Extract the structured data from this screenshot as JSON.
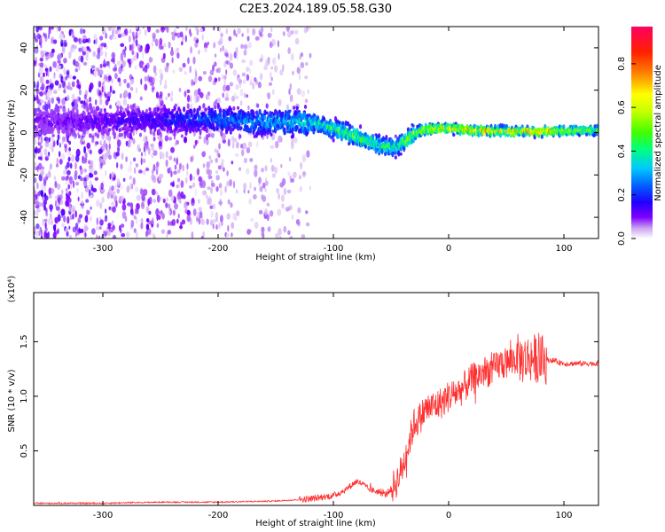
{
  "page_title": "C2E3.2024.189.05.58.G30",
  "chart_data": [
    {
      "type": "heatmap",
      "xlabel": "Height of straight line (km)",
      "ylabel": "Frequency (Hz)",
      "xlim": [
        -360,
        130
      ],
      "ylim": [
        -50,
        50
      ],
      "xticks": [
        -300,
        -200,
        -100,
        0,
        100
      ],
      "yticks": [
        -40,
        -20,
        0,
        20,
        40
      ],
      "colorbar": {
        "label": "Normalized spectral amplitude",
        "range": [
          0,
          0.97
        ],
        "ticks": [
          "0.0",
          "0.2",
          "0.4",
          "0.6",
          "0.8"
        ],
        "tick_values": [
          0.0,
          0.2,
          0.4,
          0.6,
          0.8
        ],
        "colors": [
          "#ffffff",
          "#c8a0f0",
          "#8000ff",
          "#2000ff",
          "#0060ff",
          "#00c8ff",
          "#00ff80",
          "#40ff00",
          "#c8ff00",
          "#ffff00",
          "#ff8000",
          "#ff2000",
          "#ff0060"
        ]
      },
      "ridge": {
        "x": [
          -360,
          -300,
          -250,
          -200,
          -150,
          -120,
          -100,
          -80,
          -60,
          -45,
          -35,
          -25,
          -10,
          0,
          20,
          50,
          80,
          110,
          130
        ],
        "f": [
          5,
          5,
          6,
          6,
          5,
          5,
          2,
          -2,
          -6,
          -7,
          -3,
          1,
          2,
          2,
          1,
          0.5,
          0.5,
          1,
          1
        ],
        "amplitude": [
          0.12,
          0.15,
          0.2,
          0.28,
          0.35,
          0.42,
          0.5,
          0.55,
          0.5,
          0.45,
          0.6,
          0.7,
          0.75,
          0.7,
          0.78,
          0.8,
          0.78,
          0.6,
          0.55
        ]
      },
      "grid": false
    },
    {
      "type": "line",
      "xlabel": "Height of straight line (km)",
      "ylabel": "SNR (10 * v/v)",
      "y_multiplier": "(x10⁴)",
      "xlim": [
        -360,
        130
      ],
      "ylim": [
        0,
        1.95
      ],
      "xticks": [
        -300,
        -200,
        -100,
        0,
        100
      ],
      "yticks": [
        0.5,
        1.0,
        1.5
      ],
      "ytick_labels": [
        "0.5",
        "1.0",
        "1.5"
      ],
      "color": "#ff3030",
      "series": [
        {
          "x": [
            -360,
            -300,
            -250,
            -200,
            -150,
            -120,
            -100,
            -90,
            -85,
            -80,
            -75,
            -70,
            -60,
            -55,
            -50,
            -45,
            -40,
            -35,
            -30,
            -25,
            -20,
            -15,
            -10,
            -5,
            0,
            10,
            20,
            30,
            40,
            45,
            50,
            55,
            60,
            65,
            70,
            75,
            80,
            90,
            100,
            110,
            120,
            130
          ],
          "y": [
            0.02,
            0.02,
            0.03,
            0.03,
            0.04,
            0.06,
            0.09,
            0.14,
            0.18,
            0.22,
            0.2,
            0.15,
            0.12,
            0.1,
            0.15,
            0.22,
            0.35,
            0.55,
            0.75,
            0.8,
            0.88,
            0.9,
            0.92,
            0.95,
            1.0,
            1.05,
            1.15,
            1.22,
            1.25,
            1.3,
            1.3,
            1.33,
            1.35,
            1.33,
            1.35,
            1.35,
            1.33,
            1.33,
            1.3,
            1.3,
            1.3,
            1.3
          ]
        }
      ],
      "grid": false
    }
  ]
}
